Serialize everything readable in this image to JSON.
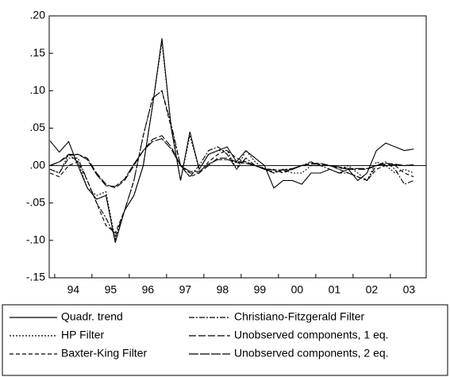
{
  "chart_data": {
    "type": "line",
    "categories": [
      null,
      "94",
      null,
      null,
      null,
      "95",
      null,
      null,
      null,
      "96",
      null,
      null,
      null,
      "97",
      null,
      null,
      null,
      "98",
      null,
      null,
      null,
      "99",
      null,
      null,
      null,
      "00",
      null,
      null,
      null,
      "01",
      null,
      null,
      null,
      "02",
      null,
      null,
      null,
      "03",
      null,
      null
    ],
    "ylim": [
      -0.15,
      0.2
    ],
    "yticks": [
      {
        "value": -0.15,
        "label": "-.15"
      },
      {
        "value": -0.1,
        "label": "-.10"
      },
      {
        "value": -0.05,
        "label": "-.05"
      },
      {
        "value": 0,
        "label": ".00"
      },
      {
        "value": 0.05,
        "label": ".05"
      },
      {
        "value": 0.1,
        "label": ".10"
      },
      {
        "value": 0.15,
        "label": ".15"
      },
      {
        "value": 0.2,
        "label": ".20"
      }
    ],
    "zero_line": true,
    "series": [
      {
        "name": "Quadr. trend",
        "color": "#000000",
        "dash": "none",
        "values": [
          0.033,
          0.018,
          0.032,
          0.0,
          -0.03,
          -0.045,
          -0.04,
          -0.103,
          -0.06,
          -0.04,
          0.0,
          0.08,
          0.17,
          0.05,
          -0.02,
          0.045,
          -0.005,
          0.015,
          0.02,
          0.025,
          0.005,
          0.02,
          0.01,
          0.0,
          -0.03,
          -0.02,
          -0.02,
          -0.025,
          -0.01,
          -0.01,
          -0.005,
          -0.01,
          -0.005,
          -0.02,
          -0.01,
          0.02,
          0.03,
          0.025,
          0.02,
          0.022
        ]
      },
      {
        "name": "HP Filter",
        "color": "#000000",
        "dash": "2,2",
        "values": [
          -0.005,
          -0.01,
          0.015,
          0.005,
          -0.03,
          -0.04,
          -0.035,
          -0.1,
          -0.06,
          -0.04,
          0.0,
          0.08,
          0.165,
          0.05,
          -0.02,
          0.04,
          -0.005,
          0.015,
          0.02,
          0.02,
          -0.005,
          0.02,
          0.005,
          -0.005,
          -0.01,
          -0.005,
          -0.01,
          -0.01,
          0.0,
          0.0,
          0.0,
          -0.005,
          0.0,
          -0.01,
          -0.02,
          0.005,
          0.0,
          -0.01,
          -0.005,
          -0.01
        ]
      },
      {
        "name": "Baxter-King Filter",
        "color": "#000000",
        "dash": "5,3",
        "values": [
          -0.01,
          -0.015,
          0.0,
          0.005,
          -0.02,
          -0.05,
          -0.08,
          -0.09,
          -0.06,
          -0.02,
          0.04,
          0.09,
          0.1,
          0.05,
          0.0,
          -0.015,
          -0.01,
          0.005,
          0.015,
          0.02,
          0.01,
          0.005,
          0.0,
          -0.005,
          -0.005,
          -0.01,
          -0.005,
          0.0,
          0.0,
          0.0,
          0.0,
          -0.005,
          -0.01,
          -0.015,
          -0.02,
          -0.005,
          0.0,
          0.0,
          -0.01,
          -0.015
        ]
      },
      {
        "name": "Christiano-Fitzgerald Filter",
        "color": "#000000",
        "dash": "7,2,2,2",
        "values": [
          -0.005,
          -0.01,
          0.01,
          0.01,
          -0.02,
          -0.05,
          -0.07,
          -0.095,
          -0.06,
          -0.02,
          0.04,
          0.09,
          0.1,
          0.055,
          0.0,
          -0.015,
          0.0,
          0.02,
          0.025,
          0.015,
          -0.005,
          0.01,
          0.0,
          -0.005,
          -0.01,
          -0.005,
          -0.005,
          0.0,
          0.005,
          0.0,
          -0.005,
          -0.01,
          -0.01,
          -0.015,
          -0.02,
          0.0,
          0.005,
          -0.005,
          -0.025,
          -0.02
        ]
      },
      {
        "name": "Unobserved components, 1 eq.",
        "color": "#000000",
        "dash": "9,3",
        "values": [
          0.0,
          0.005,
          0.015,
          0.015,
          0.01,
          -0.01,
          -0.025,
          -0.03,
          -0.02,
          0.0,
          0.02,
          0.035,
          0.04,
          0.025,
          0.0,
          -0.01,
          -0.01,
          0.0,
          0.01,
          0.01,
          0.005,
          0.005,
          0.0,
          -0.005,
          -0.008,
          -0.008,
          -0.005,
          0.0,
          0.003,
          0.003,
          0.0,
          -0.003,
          -0.005,
          -0.005,
          -0.005,
          0.0,
          0.003,
          0.002,
          0.0,
          0.001
        ]
      },
      {
        "name": "Unobserved components, 2 eq.",
        "color": "#000000",
        "dash": "12,2",
        "values": [
          0.0,
          0.005,
          0.013,
          0.015,
          0.008,
          -0.012,
          -0.027,
          -0.028,
          -0.018,
          0.002,
          0.02,
          0.032,
          0.036,
          0.022,
          0.0,
          -0.008,
          -0.008,
          0.002,
          0.008,
          0.008,
          0.004,
          0.003,
          0.0,
          -0.004,
          -0.006,
          -0.006,
          -0.004,
          0.0,
          0.002,
          0.002,
          0.0,
          -0.002,
          -0.004,
          -0.004,
          -0.004,
          0.0,
          0.002,
          0.001,
          0.0,
          0.001
        ]
      }
    ]
  }
}
